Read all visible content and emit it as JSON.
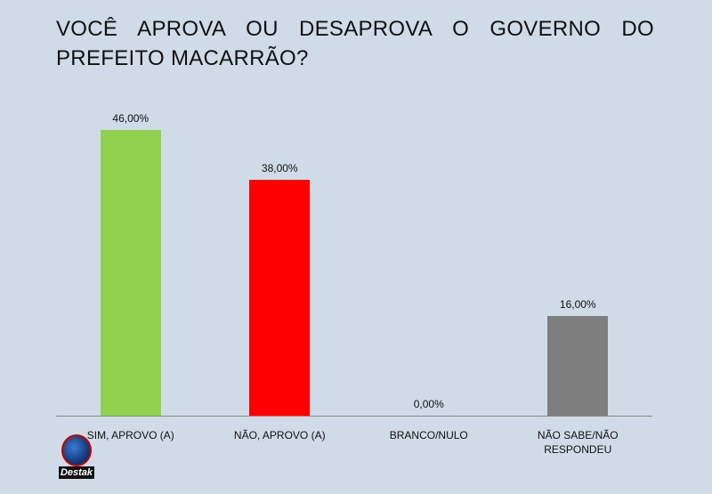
{
  "chart_data": {
    "type": "bar",
    "title": "VOCÊ APROVA OU DESAPROVA O GOVERNO DO PREFEITO MACARRÃO?",
    "categories": [
      "SIM, APROVO (A)",
      "NÃO, APROVO (A)",
      "BRANCO/NULO",
      "NÃO SABE/NÃO RESPONDEU"
    ],
    "values": [
      46,
      38,
      0,
      16
    ],
    "value_labels": [
      "46,00%",
      "38,00%",
      "0,00%",
      "16,00%"
    ],
    "colors": [
      "#92d050",
      "#ff0000",
      "#a5a5a5",
      "#7f7f7f"
    ]
  },
  "logo": "Destak"
}
